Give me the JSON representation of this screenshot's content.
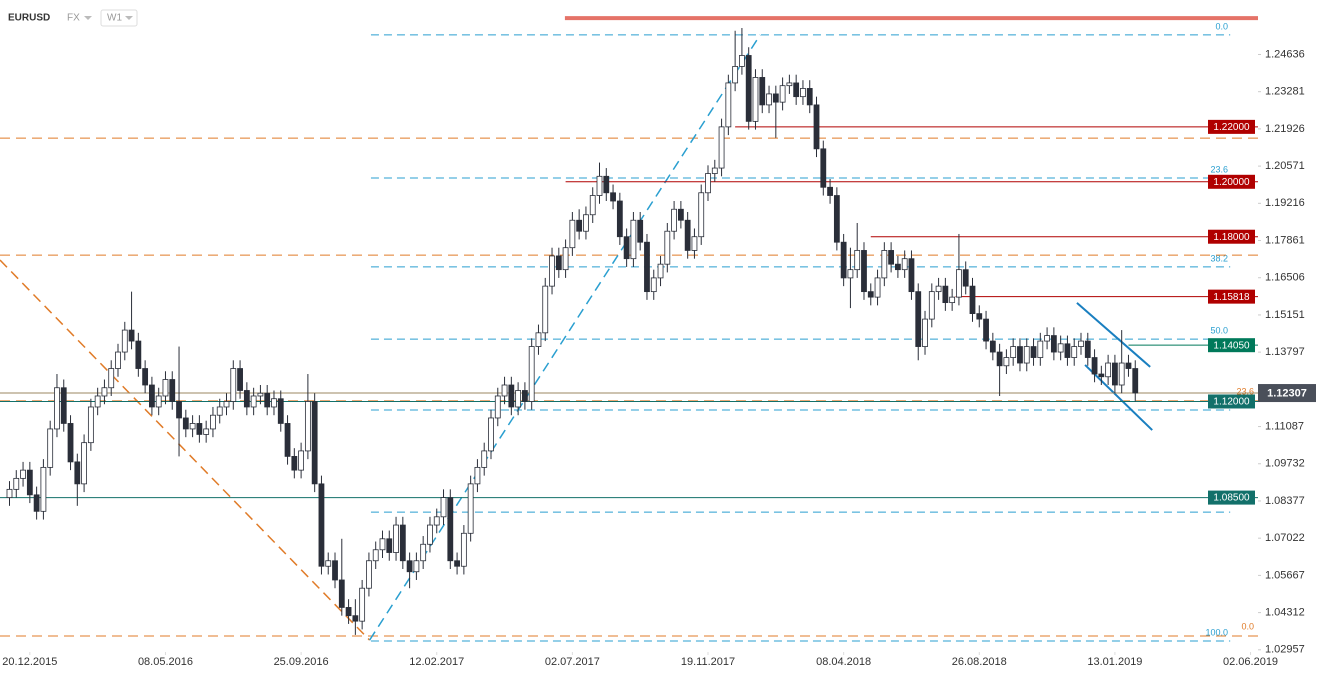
{
  "chart_data": {
    "type": "candlestick",
    "title": "EURUSD",
    "market": "FX",
    "interval": "W1",
    "xlim": [
      -1.4,
      184.1
    ],
    "ylim": [
      1.0295,
      1.2662
    ],
    "yticks": [
      1.24636,
      1.23281,
      1.21926,
      1.20571,
      1.19216,
      1.17861,
      1.16506,
      1.15151,
      1.13797,
      1.11087,
      1.09732,
      1.08377,
      1.07022,
      1.05667,
      1.04312,
      1.02957
    ],
    "xticks": [
      {
        "value": 3,
        "label": "20.12.2015"
      },
      {
        "value": 23,
        "label": "08.05.2016"
      },
      {
        "value": 43,
        "label": "25.09.2016"
      },
      {
        "value": 63,
        "label": "12.02.2017"
      },
      {
        "value": 83,
        "label": "02.07.2017"
      },
      {
        "value": 103,
        "label": "19.11.2017"
      },
      {
        "value": 123,
        "label": "08.04.2018"
      },
      {
        "value": 143,
        "label": "26.08.2018"
      },
      {
        "value": 163,
        "label": "13.01.2019"
      },
      {
        "value": 183,
        "label": "02.06.2019"
      }
    ],
    "up_color": "#ffffff",
    "down_color": "#2a2e39",
    "wick_color": "#2a2e39",
    "candles": [
      [
        1.085,
        1.091,
        1.082,
        1.088
      ],
      [
        1.088,
        1.095,
        1.085,
        1.092
      ],
      [
        1.092,
        1.098,
        1.089,
        1.095
      ],
      [
        1.095,
        1.098,
        1.083,
        1.086
      ],
      [
        1.086,
        1.089,
        1.077,
        1.08
      ],
      [
        1.08,
        1.099,
        1.077,
        1.096
      ],
      [
        1.096,
        1.113,
        1.093,
        1.11
      ],
      [
        1.11,
        1.13,
        1.107,
        1.125
      ],
      [
        1.125,
        1.128,
        1.109,
        1.112
      ],
      [
        1.112,
        1.115,
        1.095,
        1.098
      ],
      [
        1.098,
        1.101,
        1.082,
        1.09
      ],
      [
        1.09,
        1.108,
        1.087,
        1.105
      ],
      [
        1.105,
        1.121,
        1.102,
        1.118
      ],
      [
        1.118,
        1.125,
        1.115,
        1.122
      ],
      [
        1.122,
        1.128,
        1.119,
        1.125
      ],
      [
        1.125,
        1.135,
        1.122,
        1.132
      ],
      [
        1.132,
        1.141,
        1.129,
        1.138
      ],
      [
        1.138,
        1.149,
        1.135,
        1.146
      ],
      [
        1.146,
        1.16,
        1.139,
        1.142
      ],
      [
        1.142,
        1.145,
        1.129,
        1.132
      ],
      [
        1.132,
        1.135,
        1.123,
        1.126
      ],
      [
        1.126,
        1.129,
        1.115,
        1.118
      ],
      [
        1.118,
        1.125,
        1.115,
        1.122
      ],
      [
        1.122,
        1.131,
        1.119,
        1.128
      ],
      [
        1.128,
        1.131,
        1.117,
        1.12
      ],
      [
        1.12,
        1.14,
        1.1,
        1.114
      ],
      [
        1.114,
        1.117,
        1.107,
        1.11
      ],
      [
        1.11,
        1.115,
        1.107,
        1.112
      ],
      [
        1.112,
        1.115,
        1.105,
        1.108
      ],
      [
        1.108,
        1.113,
        1.105,
        1.11
      ],
      [
        1.11,
        1.118,
        1.107,
        1.115
      ],
      [
        1.115,
        1.121,
        1.112,
        1.118
      ],
      [
        1.118,
        1.123,
        1.115,
        1.12
      ],
      [
        1.12,
        1.135,
        1.117,
        1.132
      ],
      [
        1.132,
        1.135,
        1.121,
        1.124
      ],
      [
        1.124,
        1.127,
        1.115,
        1.118
      ],
      [
        1.118,
        1.125,
        1.115,
        1.122
      ],
      [
        1.122,
        1.126,
        1.119,
        1.123
      ],
      [
        1.123,
        1.126,
        1.115,
        1.118
      ],
      [
        1.118,
        1.124,
        1.115,
        1.121
      ],
      [
        1.121,
        1.124,
        1.109,
        1.112
      ],
      [
        1.112,
        1.115,
        1.097,
        1.1
      ],
      [
        1.1,
        1.103,
        1.092,
        1.095
      ],
      [
        1.095,
        1.105,
        1.092,
        1.102
      ],
      [
        1.102,
        1.13,
        1.099,
        1.12
      ],
      [
        1.12,
        1.123,
        1.087,
        1.09
      ],
      [
        1.09,
        1.093,
        1.057,
        1.06
      ],
      [
        1.06,
        1.065,
        1.057,
        1.062
      ],
      [
        1.062,
        1.065,
        1.052,
        1.055
      ],
      [
        1.055,
        1.07,
        1.042,
        1.045
      ],
      [
        1.045,
        1.048,
        1.039,
        1.042
      ],
      [
        1.042,
        1.048,
        1.035,
        1.04
      ],
      [
        1.04,
        1.055,
        1.037,
        1.052
      ],
      [
        1.052,
        1.065,
        1.049,
        1.062
      ],
      [
        1.062,
        1.069,
        1.059,
        1.066
      ],
      [
        1.066,
        1.073,
        1.063,
        1.07
      ],
      [
        1.07,
        1.073,
        1.062,
        1.065
      ],
      [
        1.065,
        1.078,
        1.062,
        1.075
      ],
      [
        1.075,
        1.078,
        1.059,
        1.062
      ],
      [
        1.062,
        1.065,
        1.052,
        1.058
      ],
      [
        1.058,
        1.065,
        1.055,
        1.062
      ],
      [
        1.062,
        1.071,
        1.059,
        1.068
      ],
      [
        1.068,
        1.078,
        1.065,
        1.075
      ],
      [
        1.075,
        1.081,
        1.072,
        1.078
      ],
      [
        1.078,
        1.088,
        1.075,
        1.085
      ],
      [
        1.085,
        1.088,
        1.059,
        1.062
      ],
      [
        1.062,
        1.065,
        1.057,
        1.06
      ],
      [
        1.06,
        1.075,
        1.057,
        1.072
      ],
      [
        1.072,
        1.093,
        1.069,
        1.09
      ],
      [
        1.09,
        1.099,
        1.087,
        1.096
      ],
      [
        1.096,
        1.105,
        1.093,
        1.102
      ],
      [
        1.102,
        1.117,
        1.099,
        1.114
      ],
      [
        1.114,
        1.125,
        1.111,
        1.122
      ],
      [
        1.122,
        1.129,
        1.119,
        1.126
      ],
      [
        1.126,
        1.129,
        1.115,
        1.118
      ],
      [
        1.118,
        1.127,
        1.115,
        1.124
      ],
      [
        1.124,
        1.127,
        1.117,
        1.12
      ],
      [
        1.12,
        1.143,
        1.117,
        1.14
      ],
      [
        1.14,
        1.148,
        1.137,
        1.145
      ],
      [
        1.145,
        1.165,
        1.142,
        1.162
      ],
      [
        1.162,
        1.176,
        1.159,
        1.173
      ],
      [
        1.173,
        1.176,
        1.165,
        1.168
      ],
      [
        1.168,
        1.179,
        1.165,
        1.176
      ],
      [
        1.176,
        1.189,
        1.173,
        1.186
      ],
      [
        1.186,
        1.19,
        1.179,
        1.182
      ],
      [
        1.182,
        1.191,
        1.179,
        1.188
      ],
      [
        1.188,
        1.198,
        1.185,
        1.195
      ],
      [
        1.195,
        1.207,
        1.192,
        1.202
      ],
      [
        1.202,
        1.205,
        1.193,
        1.196
      ],
      [
        1.196,
        1.199,
        1.19,
        1.193
      ],
      [
        1.193,
        1.196,
        1.177,
        1.18
      ],
      [
        1.18,
        1.183,
        1.169,
        1.172
      ],
      [
        1.172,
        1.189,
        1.169,
        1.186
      ],
      [
        1.186,
        1.189,
        1.175,
        1.178
      ],
      [
        1.178,
        1.181,
        1.157,
        1.16
      ],
      [
        1.16,
        1.168,
        1.157,
        1.165
      ],
      [
        1.165,
        1.173,
        1.162,
        1.17
      ],
      [
        1.17,
        1.185,
        1.167,
        1.182
      ],
      [
        1.182,
        1.193,
        1.179,
        1.19
      ],
      [
        1.19,
        1.193,
        1.183,
        1.186
      ],
      [
        1.186,
        1.189,
        1.172,
        1.175
      ],
      [
        1.175,
        1.183,
        1.172,
        1.18
      ],
      [
        1.18,
        1.199,
        1.177,
        1.196
      ],
      [
        1.196,
        1.206,
        1.193,
        1.203
      ],
      [
        1.203,
        1.208,
        1.2,
        1.205
      ],
      [
        1.205,
        1.223,
        1.202,
        1.22
      ],
      [
        1.22,
        1.239,
        1.217,
        1.236
      ],
      [
        1.236,
        1.255,
        1.233,
        1.242
      ],
      [
        1.242,
        1.256,
        1.239,
        1.246
      ],
      [
        1.246,
        1.249,
        1.219,
        1.222
      ],
      [
        1.222,
        1.241,
        1.219,
        1.238
      ],
      [
        1.238,
        1.241,
        1.225,
        1.228
      ],
      [
        1.228,
        1.235,
        1.225,
        1.232
      ],
      [
        1.232,
        1.235,
        1.216,
        1.229
      ],
      [
        1.229,
        1.238,
        1.226,
        1.235
      ],
      [
        1.235,
        1.239,
        1.232,
        1.236
      ],
      [
        1.236,
        1.239,
        1.228,
        1.231
      ],
      [
        1.231,
        1.237,
        1.228,
        1.234
      ],
      [
        1.234,
        1.237,
        1.225,
        1.228
      ],
      [
        1.228,
        1.231,
        1.209,
        1.212
      ],
      [
        1.212,
        1.215,
        1.195,
        1.198
      ],
      [
        1.198,
        1.201,
        1.192,
        1.195
      ],
      [
        1.195,
        1.198,
        1.175,
        1.178
      ],
      [
        1.178,
        1.181,
        1.162,
        1.165
      ],
      [
        1.165,
        1.176,
        1.154,
        1.168
      ],
      [
        1.168,
        1.185,
        1.165,
        1.175
      ],
      [
        1.175,
        1.178,
        1.157,
        1.16
      ],
      [
        1.16,
        1.163,
        1.155,
        1.158
      ],
      [
        1.158,
        1.168,
        1.155,
        1.165
      ],
      [
        1.165,
        1.178,
        1.162,
        1.175
      ],
      [
        1.175,
        1.178,
        1.167,
        1.17
      ],
      [
        1.17,
        1.173,
        1.165,
        1.168
      ],
      [
        1.168,
        1.175,
        1.165,
        1.172
      ],
      [
        1.172,
        1.175,
        1.157,
        1.16
      ],
      [
        1.16,
        1.163,
        1.135,
        1.14
      ],
      [
        1.14,
        1.153,
        1.137,
        1.15
      ],
      [
        1.15,
        1.163,
        1.147,
        1.16
      ],
      [
        1.16,
        1.165,
        1.157,
        1.162
      ],
      [
        1.162,
        1.165,
        1.153,
        1.156
      ],
      [
        1.156,
        1.161,
        1.153,
        1.158
      ],
      [
        1.158,
        1.181,
        1.155,
        1.168
      ],
      [
        1.168,
        1.171,
        1.159,
        1.162
      ],
      [
        1.162,
        1.165,
        1.149,
        1.152
      ],
      [
        1.152,
        1.155,
        1.147,
        1.15
      ],
      [
        1.15,
        1.153,
        1.139,
        1.142
      ],
      [
        1.142,
        1.145,
        1.135,
        1.138
      ],
      [
        1.138,
        1.141,
        1.122,
        1.133
      ],
      [
        1.133,
        1.139,
        1.13,
        1.136
      ],
      [
        1.136,
        1.143,
        1.133,
        1.14
      ],
      [
        1.14,
        1.143,
        1.131,
        1.134
      ],
      [
        1.134,
        1.143,
        1.131,
        1.14
      ],
      [
        1.14,
        1.143,
        1.133,
        1.136
      ],
      [
        1.136,
        1.145,
        1.133,
        1.142
      ],
      [
        1.142,
        1.147,
        1.139,
        1.144
      ],
      [
        1.144,
        1.147,
        1.135,
        1.138
      ],
      [
        1.138,
        1.144,
        1.135,
        1.141
      ],
      [
        1.141,
        1.144,
        1.133,
        1.136
      ],
      [
        1.136,
        1.143,
        1.133,
        1.14
      ],
      [
        1.14,
        1.145,
        1.137,
        1.142
      ],
      [
        1.142,
        1.145,
        1.133,
        1.136
      ],
      [
        1.136,
        1.139,
        1.127,
        1.13
      ],
      [
        1.13,
        1.133,
        1.126,
        1.129
      ],
      [
        1.129,
        1.137,
        1.126,
        1.134
      ],
      [
        1.134,
        1.137,
        1.123,
        1.126
      ],
      [
        1.126,
        1.146,
        1.123,
        1.134
      ],
      [
        1.134,
        1.137,
        1.129,
        1.132
      ],
      [
        1.132,
        1.135,
        1.12,
        1.1231
      ]
    ],
    "resistance_band": {
      "value": 1.2596,
      "start": 81.9,
      "color": "#e57368"
    },
    "fib_levels": {
      "color": "#2a9fd0",
      "start": 53.3,
      "end": 180,
      "levels": [
        {
          "value": 1.2535,
          "label": "0.0"
        },
        {
          "value": 1.2014,
          "label": "23.6"
        },
        {
          "value": 1.169,
          "label": "38.2"
        },
        {
          "value": 1.1427,
          "label": "50.0"
        },
        {
          "value": 1.1169
        },
        {
          "value": 1.0797
        },
        {
          "value": 1.0328,
          "label": "100.0"
        }
      ]
    },
    "orange_levels": {
      "color": "#e07b28",
      "levels": [
        {
          "value": 1.2159
        },
        {
          "value": 1.1733
        },
        {
          "value": 1.1202,
          "label": "23.6"
        },
        {
          "value": 1.0346,
          "label": "0.0"
        }
      ]
    },
    "price_levels": [
      {
        "value": 1.22,
        "label": "1.22000",
        "color": "#b00000",
        "start": 107
      },
      {
        "value": 1.2,
        "label": "1.20000",
        "color": "#b00000",
        "start": 82
      },
      {
        "value": 1.18,
        "label": "1.18000",
        "color": "#b00000",
        "start": 127
      },
      {
        "value": 1.15818,
        "label": "1.15818",
        "color": "#b00000",
        "start": 139.5
      },
      {
        "value": 1.1405,
        "label": "1.14050",
        "color": "#00795a",
        "start": 165
      },
      {
        "value": 1.12,
        "label": "1.12000",
        "color": "#12706a"
      },
      {
        "value": 1.085,
        "label": "1.08500",
        "color": "#12706a"
      }
    ],
    "last_price": {
      "value": 1.12307,
      "label": "1.12307",
      "color": "#9b8760",
      "box_color": "#4a4f5a"
    },
    "trend_lines": [
      {
        "color": "#e07b28",
        "dash": true,
        "points": [
          [
            -1.4,
            1.1715
          ],
          [
            53.1,
            1.0331
          ]
        ]
      },
      {
        "color": "#2a9fd0",
        "dash": true,
        "points": [
          [
            53.1,
            1.0331
          ],
          [
            110.7,
            1.2535
          ]
        ]
      },
      {
        "color": "#1a7fc0",
        "dash": false,
        "points": [
          [
            157.4,
            1.1559
          ],
          [
            168.2,
            1.1326
          ]
        ]
      },
      {
        "color": "#1a7fc0",
        "dash": false,
        "points": [
          [
            158.6,
            1.1333
          ],
          [
            168.5,
            1.1096
          ]
        ]
      }
    ]
  }
}
